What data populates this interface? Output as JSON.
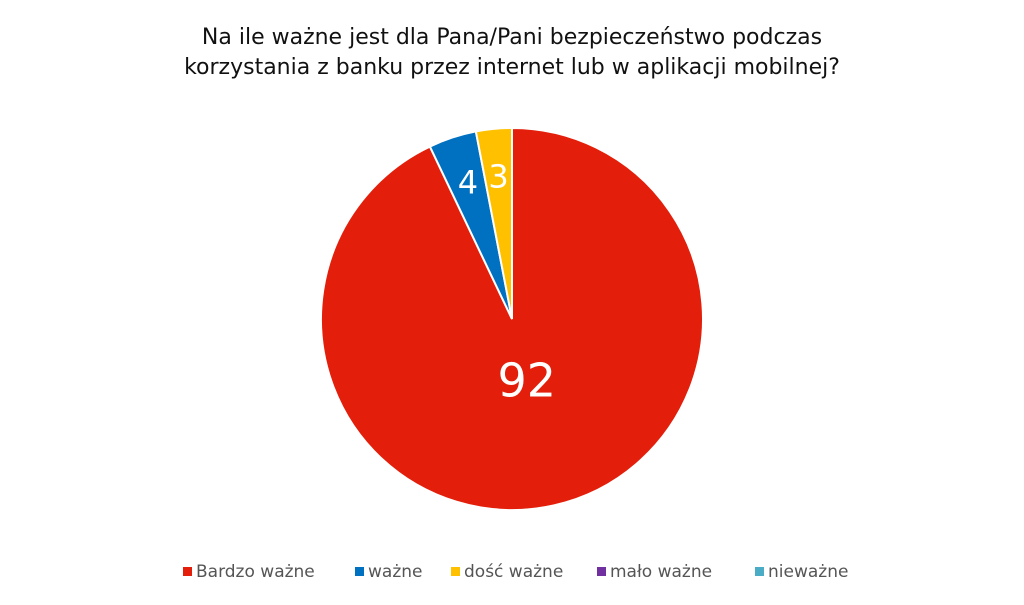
{
  "chart_data": {
    "type": "pie",
    "title": [
      "Na ile ważne jest dla Pana/Pani bezpieczeństwo podczas",
      "korzystania z banku przez internet lub w aplikacji mobilnej?"
    ],
    "categories": [
      "Bardzo ważne",
      "ważne",
      "dość ważne",
      "mało ważne",
      "nieważne"
    ],
    "values": [
      92,
      4,
      3,
      0,
      0
    ],
    "colors": [
      "#e31e0a",
      "#0070c0",
      "#ffc000",
      "#7030a0",
      "#4bacc6"
    ],
    "legend": "bottom"
  }
}
